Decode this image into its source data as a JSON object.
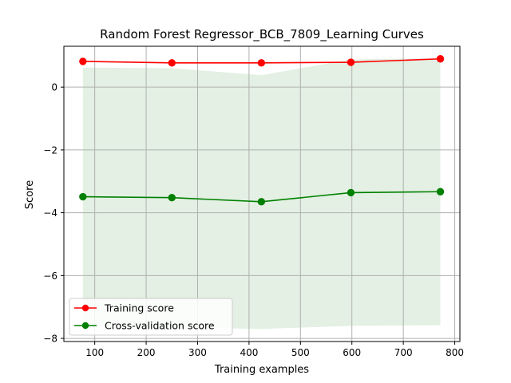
{
  "chart_data": {
    "type": "line",
    "title": "Random Forest Regressor_BCB_7809_Learning Curves",
    "xlabel": "Training examples",
    "ylabel": "Score",
    "xlim": [
      40,
      810
    ],
    "ylim": [
      -8.1,
      1.3
    ],
    "xticks": [
      100,
      200,
      300,
      400,
      500,
      600,
      700,
      800
    ],
    "yticks": [
      0,
      -2,
      -4,
      -6,
      -8
    ],
    "ytick_labels": [
      "0",
      "−2",
      "−4",
      "−6",
      "−8"
    ],
    "grid": true,
    "legend_position": "lower-left",
    "x": [
      77,
      250,
      424,
      598,
      772
    ],
    "series": [
      {
        "name": "Training score",
        "values": [
          0.82,
          0.77,
          0.77,
          0.79,
          0.9
        ],
        "band_lower": [
          0.82,
          0.77,
          0.77,
          0.79,
          0.9
        ],
        "band_upper": [
          0.82,
          0.77,
          0.77,
          0.79,
          0.9
        ],
        "color": "#ff0000",
        "marker": "circle"
      },
      {
        "name": "Cross-validation score",
        "values": [
          -3.49,
          -3.52,
          -3.65,
          -3.36,
          -3.33
        ],
        "band_lower": [
          -7.6,
          -7.65,
          -7.7,
          -7.6,
          -7.58
        ],
        "band_upper": [
          0.62,
          0.6,
          0.38,
          0.88,
          0.92
        ],
        "color": "#008000",
        "band_color": "#e3f0e3",
        "marker": "circle"
      }
    ]
  }
}
